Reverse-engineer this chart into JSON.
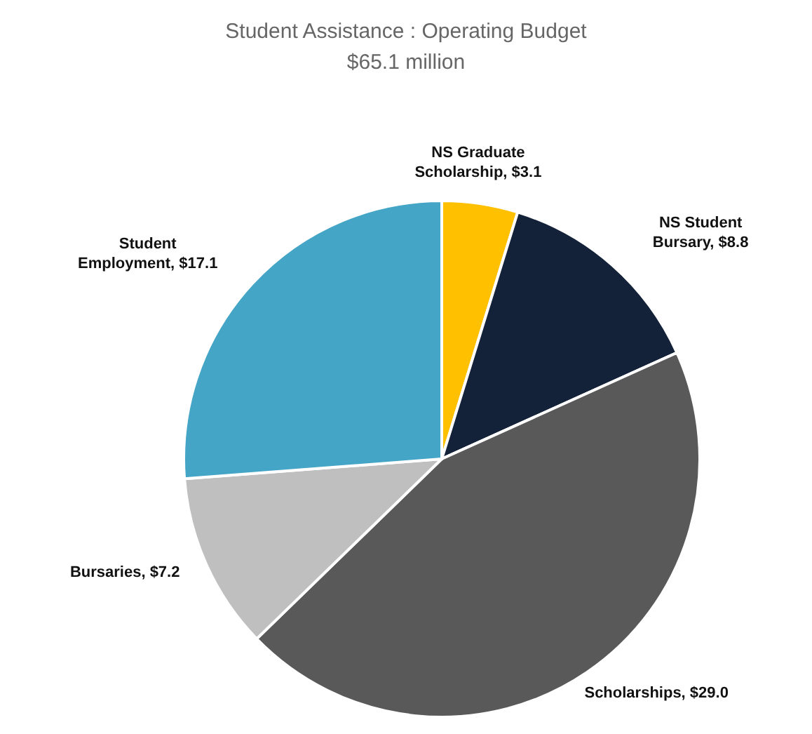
{
  "chart_data": {
    "type": "pie",
    "title": "Student Assistance : Operating Budget",
    "subtitle": "$65.1 million",
    "categories": [
      "NS Graduate Scholarship",
      "NS Student Bursary",
      "Scholarships",
      "Bursaries",
      "Student Employment"
    ],
    "values": [
      3.1,
      8.8,
      29.0,
      7.2,
      17.1
    ],
    "value_labels": [
      "$3.1",
      "$8.8",
      "$29.0",
      "$7.2",
      "$17.1"
    ],
    "colors": [
      "#ffc000",
      "#132238",
      "#595959",
      "#bfbfbf",
      "#45a5c6"
    ]
  }
}
